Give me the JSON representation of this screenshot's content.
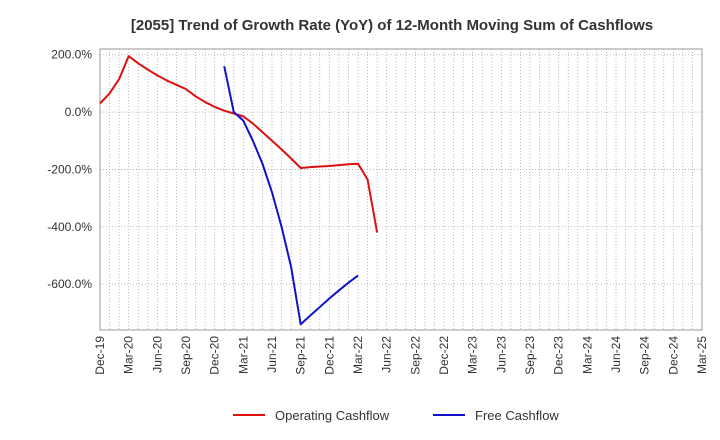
{
  "chart_data": {
    "type": "line",
    "title": "[2055]  Trend of Growth Rate (YoY) of 12-Month Moving Sum of Cashflows",
    "xlabel": "",
    "ylabel": "",
    "x_ticks": [
      "Dec-19",
      "Mar-20",
      "Jun-20",
      "Sep-20",
      "Dec-20",
      "Mar-21",
      "Jun-21",
      "Sep-21",
      "Dec-21",
      "Mar-22",
      "Jun-22",
      "Sep-22",
      "Dec-22",
      "Mar-23",
      "Jun-23",
      "Sep-23",
      "Dec-23",
      "Mar-24",
      "Jun-24",
      "Sep-24",
      "Dec-24",
      "Mar-25"
    ],
    "y_ticks": [
      200,
      0,
      -200,
      -400,
      -600
    ],
    "y_tick_labels": [
      "200.0%",
      "0.0%",
      "-200.0%",
      "-400.0%",
      "-600.0%"
    ],
    "ylim": [
      -760,
      220
    ],
    "xlim": [
      "Dec-19",
      "Mar-25"
    ],
    "grid": true,
    "legend_position": "bottom",
    "series": [
      {
        "name": "Operating Cashflow",
        "color": "#dd1111",
        "x": [
          "Dec-19",
          "Jan-20",
          "Feb-20",
          "Mar-20",
          "Apr-20",
          "May-20",
          "Jun-20",
          "Jul-20",
          "Aug-20",
          "Sep-20",
          "Oct-20",
          "Nov-20",
          "Dec-20",
          "Jan-21",
          "Feb-21",
          "Mar-21",
          "Apr-21",
          "May-21",
          "Jun-21",
          "Jul-21",
          "Aug-21",
          "Sep-21",
          "Oct-21",
          "Nov-21",
          "Dec-21",
          "Jan-22",
          "Feb-22",
          "Mar-22",
          "Apr-22",
          "May-22"
        ],
        "values": [
          30,
          65,
          115,
          195,
          170,
          148,
          128,
          110,
          95,
          80,
          55,
          35,
          18,
          5,
          -5,
          -15,
          -40,
          -70,
          -100,
          -130,
          -162,
          -195,
          -192,
          -190,
          -188,
          -185,
          -182,
          -180,
          -235,
          -420
        ]
      },
      {
        "name": "Free Cashflow",
        "color": "#1111cc",
        "x": [
          "Jan-21",
          "Feb-21",
          "Mar-21",
          "Apr-21",
          "May-21",
          "Jun-21",
          "Jul-21",
          "Aug-21",
          "Sep-21",
          "Oct-21",
          "Nov-21",
          "Dec-21",
          "Jan-22",
          "Feb-22",
          "Mar-22"
        ],
        "values": [
          160,
          0,
          -30,
          -100,
          -180,
          -280,
          -400,
          -540,
          -740,
          -710,
          -680,
          -650,
          -622,
          -595,
          -570
        ]
      }
    ]
  }
}
